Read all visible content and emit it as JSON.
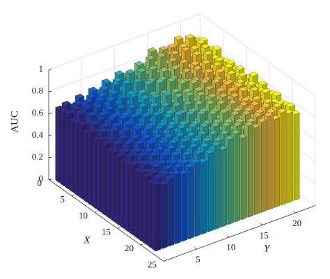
{
  "chart_data": {
    "type": "bar3",
    "zlabel": "AUC",
    "xlabel": "X",
    "ylabel": "Y",
    "x": [
      1,
      2,
      3,
      4,
      5,
      6,
      7,
      8,
      9,
      10,
      11,
      12,
      13,
      14,
      15,
      16,
      17,
      18,
      19,
      20,
      21,
      22
    ],
    "y": [
      1,
      2,
      3,
      4,
      5,
      6,
      7,
      8,
      9,
      10,
      11,
      12,
      13,
      14,
      15,
      16,
      17,
      18,
      19,
      20,
      21,
      22
    ],
    "xlim": [
      0,
      25
    ],
    "ylim": [
      0,
      23
    ],
    "zlim": [
      0,
      1
    ],
    "xticks": [
      0,
      5,
      10,
      15,
      20,
      25
    ],
    "yticks": [
      5,
      10,
      15,
      20
    ],
    "zticks": [
      0,
      0.2,
      0.4,
      0.6,
      0.8,
      1
    ],
    "grid": true,
    "colormap": [
      "#352a87",
      "#0f5cdd",
      "#1aa8c4",
      "#7fc46a",
      "#f5b93c",
      "#f9fb0e"
    ],
    "values": [
      [
        0.66,
        0.68,
        0.64,
        0.7,
        0.62,
        0.72,
        0.68,
        0.75,
        0.7,
        0.78,
        0.74,
        0.72,
        0.8,
        0.77,
        0.88,
        0.82,
        0.79,
        0.85,
        0.9,
        0.83,
        0.86,
        0.82
      ],
      [
        0.67,
        0.63,
        0.69,
        0.66,
        0.71,
        0.65,
        0.74,
        0.69,
        0.77,
        0.71,
        0.8,
        0.76,
        0.74,
        0.86,
        0.79,
        0.9,
        0.84,
        0.8,
        0.86,
        0.92,
        0.81,
        0.85
      ],
      [
        0.68,
        0.7,
        0.65,
        0.72,
        0.66,
        0.73,
        0.67,
        0.79,
        0.72,
        0.75,
        0.73,
        0.82,
        0.78,
        0.75,
        0.89,
        0.81,
        0.87,
        0.83,
        0.79,
        0.85,
        0.88,
        0.8
      ],
      [
        0.64,
        0.69,
        0.71,
        0.63,
        0.74,
        0.68,
        0.76,
        0.7,
        0.81,
        0.69,
        0.77,
        0.74,
        0.85,
        0.8,
        0.76,
        0.86,
        0.78,
        0.91,
        0.84,
        0.8,
        0.87,
        0.83
      ],
      [
        0.65,
        0.62,
        0.68,
        0.73,
        0.67,
        0.75,
        0.7,
        0.72,
        0.74,
        0.83,
        0.71,
        0.79,
        0.73,
        0.84,
        0.82,
        0.77,
        0.85,
        0.79,
        0.88,
        0.82,
        0.78,
        0.86
      ],
      [
        0.67,
        0.66,
        0.63,
        0.69,
        0.72,
        0.64,
        0.78,
        0.71,
        0.68,
        0.76,
        0.82,
        0.7,
        0.81,
        0.75,
        0.87,
        0.8,
        0.76,
        0.84,
        0.81,
        0.89,
        0.83,
        0.79
      ],
      [
        0.63,
        0.68,
        0.7,
        0.65,
        0.68,
        0.74,
        0.66,
        0.8,
        0.73,
        0.7,
        0.75,
        0.84,
        0.72,
        0.83,
        0.78,
        0.85,
        0.82,
        0.78,
        0.86,
        0.8,
        0.84,
        0.81
      ],
      [
        0.66,
        0.64,
        0.67,
        0.71,
        0.63,
        0.7,
        0.75,
        0.69,
        0.79,
        0.74,
        0.68,
        0.77,
        0.86,
        0.74,
        0.81,
        0.79,
        0.88,
        0.83,
        0.77,
        0.85,
        0.79,
        0.82
      ],
      [
        0.62,
        0.67,
        0.65,
        0.68,
        0.73,
        0.66,
        0.71,
        0.77,
        0.7,
        0.81,
        0.73,
        0.72,
        0.79,
        0.85,
        0.76,
        0.83,
        0.8,
        0.86,
        0.82,
        0.78,
        0.84,
        0.8
      ],
      [
        0.65,
        0.63,
        0.69,
        0.64,
        0.7,
        0.75,
        0.68,
        0.72,
        0.78,
        0.71,
        0.84,
        0.75,
        0.73,
        0.8,
        0.86,
        0.78,
        0.84,
        0.79,
        0.87,
        0.81,
        0.77,
        0.83
      ],
      [
        0.64,
        0.66,
        0.62,
        0.7,
        0.67,
        0.69,
        0.76,
        0.7,
        0.74,
        0.79,
        0.72,
        0.83,
        0.77,
        0.76,
        0.82,
        0.87,
        0.79,
        0.85,
        0.8,
        0.86,
        0.82,
        0.78
      ],
      [
        0.61,
        0.65,
        0.68,
        0.63,
        0.72,
        0.66,
        0.7,
        0.78,
        0.69,
        0.75,
        0.8,
        0.71,
        0.85,
        0.78,
        0.79,
        0.84,
        0.88,
        0.8,
        0.83,
        0.79,
        0.85,
        0.81
      ],
      [
        0.63,
        0.6,
        0.66,
        0.69,
        0.64,
        0.73,
        0.67,
        0.71,
        0.77,
        0.72,
        0.76,
        0.82,
        0.74,
        0.86,
        0.8,
        0.77,
        0.83,
        0.87,
        0.81,
        0.84,
        0.8,
        0.86
      ],
      [
        0.62,
        0.64,
        0.61,
        0.67,
        0.7,
        0.65,
        0.74,
        0.68,
        0.73,
        0.8,
        0.7,
        0.78,
        0.83,
        0.75,
        0.85,
        0.81,
        0.78,
        0.84,
        0.86,
        0.8,
        0.83,
        0.79
      ],
      [
        0.6,
        0.63,
        0.65,
        0.62,
        0.68,
        0.71,
        0.66,
        0.75,
        0.7,
        0.74,
        0.81,
        0.73,
        0.79,
        0.84,
        0.77,
        0.86,
        0.82,
        0.79,
        0.85,
        0.82,
        0.78,
        0.84
      ],
      [
        0.61,
        0.59,
        0.64,
        0.66,
        0.63,
        0.69,
        0.72,
        0.67,
        0.76,
        0.71,
        0.75,
        0.82,
        0.72,
        0.8,
        0.85,
        0.78,
        0.87,
        0.81,
        0.8,
        0.86,
        0.83,
        0.8
      ],
      [
        0.63,
        0.62,
        0.6,
        0.65,
        0.68,
        0.64,
        0.7,
        0.74,
        0.69,
        0.78,
        0.73,
        0.76,
        0.83,
        0.77,
        0.81,
        0.86,
        0.79,
        0.84,
        0.82,
        0.79,
        0.85,
        0.81
      ],
      [
        0.6,
        0.64,
        0.62,
        0.61,
        0.66,
        0.7,
        0.65,
        0.72,
        0.75,
        0.7,
        0.79,
        0.74,
        0.78,
        0.85,
        0.76,
        0.82,
        0.85,
        0.8,
        0.86,
        0.81,
        0.78,
        0.83
      ],
      [
        0.62,
        0.6,
        0.63,
        0.64,
        0.62,
        0.67,
        0.71,
        0.66,
        0.73,
        0.77,
        0.71,
        0.8,
        0.75,
        0.79,
        0.84,
        0.78,
        0.83,
        0.86,
        0.79,
        0.84,
        0.82,
        0.79
      ],
      [
        0.61,
        0.63,
        0.59,
        0.62,
        0.65,
        0.63,
        0.68,
        0.73,
        0.68,
        0.74,
        0.78,
        0.72,
        0.81,
        0.76,
        0.8,
        0.85,
        0.8,
        0.82,
        0.85,
        0.8,
        0.83,
        0.8
      ],
      [
        0.59,
        0.61,
        0.62,
        0.6,
        0.64,
        0.66,
        0.64,
        0.7,
        0.74,
        0.69,
        0.75,
        0.79,
        0.73,
        0.82,
        0.77,
        0.81,
        0.84,
        0.79,
        0.83,
        0.86,
        0.79,
        0.82
      ],
      [
        0.6,
        0.58,
        0.61,
        0.63,
        0.61,
        0.65,
        0.67,
        0.65,
        0.71,
        0.76,
        0.7,
        0.77,
        0.8,
        0.74,
        0.83,
        0.79,
        0.82,
        0.85,
        0.8,
        0.84,
        0.81,
        0.78
      ]
    ]
  }
}
